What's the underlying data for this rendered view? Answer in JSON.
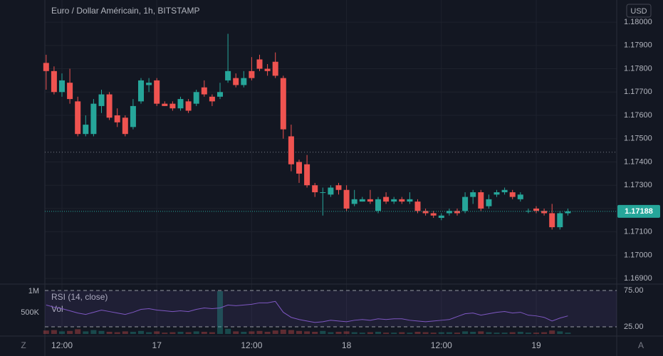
{
  "chart_data": {
    "type": "candlestick",
    "title": "Euro / Dollar Américain, 1h, BITSTAMP",
    "currency": "USD",
    "categories": [
      null,
      null,
      "12:00",
      null,
      null,
      null,
      null,
      null,
      null,
      null,
      null,
      null,
      null,
      null,
      "17",
      null,
      null,
      null,
      null,
      null,
      null,
      null,
      null,
      null,
      null,
      null,
      "12:00",
      null,
      null,
      null,
      null,
      null,
      null,
      null,
      null,
      null,
      null,
      null,
      "18",
      null,
      null,
      null,
      null,
      null,
      null,
      null,
      null,
      null,
      null,
      null,
      "12:00",
      null,
      null,
      null,
      null,
      null,
      null,
      null,
      null,
      null,
      null,
      null,
      "19",
      null,
      null,
      null,
      null
    ],
    "open": [
      1.17825,
      1.1779,
      1.177,
      1.1774,
      1.1766,
      1.1752,
      1.1752,
      1.1764,
      1.1769,
      1.176,
      1.1759,
      1.1755,
      1.1766,
      1.1773,
      1.1775,
      1.1765,
      1.1765,
      1.1763,
      1.1766,
      1.1765,
      1.1772,
      1.1768,
      1.1768,
      1.1775,
      1.1776,
      1.1773,
      1.1779,
      1.1784,
      1.178,
      1.1783,
      1.1776,
      1.1751,
      1.174,
      1.1739,
      1.173,
      1.1727,
      1.1726,
      1.173,
      1.1728,
      1.1722,
      1.1723,
      1.1724,
      1.1719,
      1.1725,
      1.1723,
      1.1724,
      1.1723,
      1.1723,
      1.1719,
      1.1718,
      1.1716,
      1.1718,
      1.1719,
      1.1719,
      1.1725,
      1.1727,
      1.1721,
      1.1726,
      1.1727,
      1.1727,
      1.1724,
      1.1719,
      1.172,
      1.1719,
      1.1718,
      1.1712,
      1.1718
    ],
    "high": [
      1.1786,
      1.1781,
      1.1778,
      1.178,
      1.1768,
      1.176,
      1.1767,
      1.1771,
      1.177,
      1.1763,
      1.176,
      1.1767,
      1.1776,
      1.1776,
      1.1776,
      1.1766,
      1.1766,
      1.1768,
      1.1767,
      1.1771,
      1.1775,
      1.1769,
      1.1774,
      1.1795,
      1.1778,
      1.1779,
      1.1785,
      1.1786,
      1.1782,
      1.1787,
      1.1777,
      1.1756,
      1.1741,
      1.1743,
      1.1731,
      1.1729,
      1.173,
      1.1731,
      1.173,
      1.1728,
      1.1725,
      1.1728,
      1.1725,
      1.1727,
      1.1725,
      1.1725,
      1.1727,
      1.1724,
      1.172,
      1.1719,
      1.1718,
      1.172,
      1.172,
      1.1727,
      1.1728,
      1.1728,
      1.1726,
      1.1728,
      1.1729,
      1.1728,
      1.1727,
      1.172,
      1.1721,
      1.172,
      1.1722,
      1.1719,
      1.172
    ],
    "low": [
      1.1771,
      1.1769,
      1.1768,
      1.1765,
      1.1751,
      1.1751,
      1.1751,
      1.1761,
      1.1758,
      1.1755,
      1.1751,
      1.1754,
      1.1765,
      1.177,
      1.1764,
      1.1764,
      1.1762,
      1.1762,
      1.1761,
      1.1764,
      1.1768,
      1.1764,
      1.1767,
      1.1774,
      1.1772,
      1.1772,
      1.1775,
      1.1779,
      1.1777,
      1.1776,
      1.175,
      1.1736,
      1.1731,
      1.1729,
      1.1725,
      1.1717,
      1.1725,
      1.1726,
      1.1719,
      1.1721,
      1.1723,
      1.1722,
      1.1718,
      1.1722,
      1.1722,
      1.1722,
      1.1722,
      1.1718,
      1.1717,
      1.1716,
      1.1715,
      1.1717,
      1.1717,
      1.1718,
      1.1722,
      1.1719,
      1.172,
      1.1725,
      1.1726,
      1.1724,
      1.1723,
      1.1718,
      1.1718,
      1.1717,
      1.1711,
      1.1711,
      1.1717
    ],
    "close": [
      1.1779,
      1.177,
      1.1775,
      1.1767,
      1.1752,
      1.1756,
      1.1765,
      1.1769,
      1.1759,
      1.1757,
      1.1752,
      1.1764,
      1.1775,
      1.1774,
      1.1765,
      1.1764,
      1.1763,
      1.1767,
      1.1762,
      1.177,
      1.1769,
      1.1766,
      1.177,
      1.1779,
      1.1773,
      1.1776,
      1.1776,
      1.178,
      1.1779,
      1.1777,
      1.1754,
      1.1739,
      1.1735,
      1.173,
      1.1727,
      1.1727,
      1.1729,
      1.1728,
      1.172,
      1.1724,
      1.1724,
      1.1723,
      1.1724,
      1.1723,
      1.1724,
      1.1723,
      1.1724,
      1.1719,
      1.1718,
      1.1717,
      1.1717,
      1.1719,
      1.1718,
      1.1725,
      1.1727,
      1.172,
      1.1724,
      1.1727,
      1.1728,
      1.1725,
      1.1726,
      1.1719,
      1.1719,
      1.1718,
      1.1712,
      1.1718,
      1.17188
    ],
    "up_color": "#26a69a",
    "down_color": "#ef5350",
    "ylim": [
      1.16879,
      1.18095
    ],
    "yticks": [
      {
        "value": 1.18,
        "label": "1.18000"
      },
      {
        "value": 1.179,
        "label": "1.17900"
      },
      {
        "value": 1.178,
        "label": "1.17800"
      },
      {
        "value": 1.177,
        "label": "1.17700"
      },
      {
        "value": 1.176,
        "label": "1.17600"
      },
      {
        "value": 1.175,
        "label": "1.17500"
      },
      {
        "value": 1.174,
        "label": "1.17400"
      },
      {
        "value": 1.173,
        "label": "1.17300"
      },
      {
        "value": 1.172,
        "label": "1.17200"
      },
      {
        "value": 1.171,
        "label": "1.17100"
      },
      {
        "value": 1.17,
        "label": "1.17000"
      },
      {
        "value": 1.169,
        "label": "1.16900"
      }
    ],
    "grid": true,
    "last_price": 1.17188,
    "reference_line": 1.17442,
    "indicator_title": "RSI (14, close)",
    "volume_title": "Vol",
    "volume": [
      80000,
      90000,
      60000,
      70000,
      110000,
      60000,
      90000,
      70000,
      50000,
      40000,
      60000,
      50000,
      70000,
      40000,
      60000,
      30000,
      40000,
      50000,
      40000,
      60000,
      50000,
      40000,
      1000000,
      120000,
      60000,
      50000,
      60000,
      70000,
      50000,
      80000,
      100000,
      90000,
      70000,
      60000,
      50000,
      70000,
      40000,
      50000,
      60000,
      40000,
      30000,
      40000,
      50000,
      30000,
      30000,
      40000,
      30000,
      50000,
      40000,
      30000,
      40000,
      40000,
      30000,
      60000,
      50000,
      60000,
      40000,
      30000,
      30000,
      40000,
      50000,
      30000,
      30000,
      40000,
      80000,
      60000,
      30000
    ],
    "vlim": [
      0,
      1150000
    ],
    "vticks": [
      {
        "value": 1000000,
        "label": "1M"
      },
      {
        "value": 500000,
        "label": "500K"
      }
    ],
    "rsi": [
      55,
      52,
      50,
      47,
      44,
      42,
      45,
      48,
      46,
      44,
      42,
      45,
      49,
      50,
      48,
      47,
      46,
      47,
      46,
      49,
      51,
      50,
      51,
      55,
      54,
      55,
      56,
      58,
      58,
      60,
      45,
      38,
      35,
      33,
      31,
      32,
      34,
      33,
      32,
      34,
      35,
      34,
      36,
      35,
      36,
      36,
      34,
      33,
      32,
      33,
      34,
      35,
      39,
      43,
      44,
      41,
      43,
      45,
      46,
      44,
      45,
      41,
      40,
      38,
      33,
      37,
      40
    ],
    "rsi_color": "#7e57c2",
    "rsilim": [
      15.2,
      82.8
    ],
    "rsiticks": [
      {
        "value": 75,
        "label": "75.00"
      },
      {
        "value": 25,
        "label": "25.00"
      }
    ],
    "timezone_button": "Z",
    "auto_button": "A"
  }
}
